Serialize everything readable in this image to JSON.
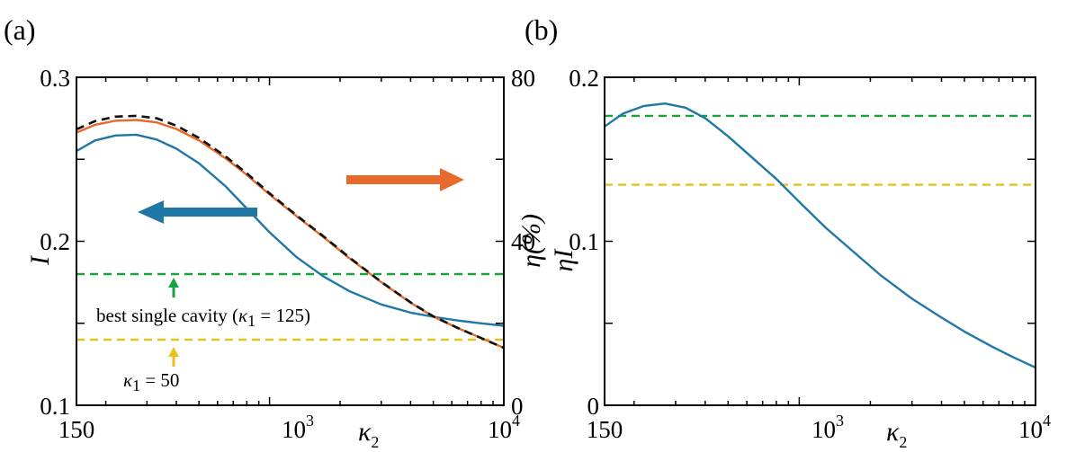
{
  "chart_data": [
    {
      "type": "line",
      "panel_label": "(a)",
      "x_scale": "log",
      "xlim": [
        150,
        10000
      ],
      "xticks": [
        {
          "label": "150"
        },
        {
          "base": "10",
          "exp": "3"
        },
        {
          "base": "10",
          "exp": "4"
        }
      ],
      "xlabel": {
        "symbol": "κ",
        "sub": "2"
      },
      "ylabel_left": "I",
      "ylim_left": [
        0.1,
        0.3
      ],
      "yticks_left": [
        "0.1",
        "0.2",
        "0.3"
      ],
      "ylabel_right": "η(%)",
      "ylim_right": [
        0,
        80
      ],
      "yticks_right": [
        "0",
        "40",
        "80"
      ],
      "series": [
        {
          "name": "I",
          "axis": "left",
          "color": "#1f77a6",
          "style": "solid",
          "x": [
            150,
            180,
            220,
            270,
            330,
            400,
            500,
            650,
            800,
            1000,
            1300,
            1700,
            2200,
            3000,
            4000,
            5000,
            6500,
            8000,
            10000
          ],
          "y": [
            0.255,
            0.2615,
            0.2645,
            0.265,
            0.262,
            0.2565,
            0.2475,
            0.2335,
            0.22,
            0.2055,
            0.1905,
            0.1785,
            0.1695,
            0.1615,
            0.1565,
            0.154,
            0.1515,
            0.15,
            0.1485
          ]
        },
        {
          "name": "η",
          "axis": "right",
          "color": "#e8692a",
          "style": "solid",
          "x": [
            150,
            180,
            220,
            270,
            330,
            400,
            500,
            650,
            800,
            1000,
            1300,
            1700,
            2200,
            3000,
            4000,
            5000,
            6500,
            8000,
            10000
          ],
          "y": [
            66.5,
            68.4,
            69.4,
            69.6,
            69.0,
            67.4,
            64.6,
            60.2,
            56.2,
            51.4,
            46.2,
            41.0,
            35.8,
            30.0,
            25.0,
            21.6,
            18.6,
            16.4,
            14.0
          ]
        },
        {
          "name": "η (dashed)",
          "axis": "right",
          "color": "#111111",
          "style": "dashed",
          "x": [
            150,
            180,
            220,
            270,
            330,
            400,
            500,
            650,
            800,
            1000,
            1300,
            1700,
            2200,
            3000,
            4000,
            5000,
            6500,
            8000,
            10000
          ],
          "y": [
            67.3,
            69.3,
            70.4,
            70.6,
            70.0,
            68.2,
            65.2,
            60.7,
            56.6,
            51.7,
            46.4,
            41.2,
            36.0,
            30.1,
            25.1,
            21.7,
            18.6,
            16.4,
            14.0
          ]
        }
      ],
      "reference_lines": [
        {
          "name": "best single cavity",
          "axis": "left",
          "y": 0.18,
          "color": "#19a33f",
          "style": "dashed"
        },
        {
          "name": "κ1 = 50",
          "axis": "left",
          "y": 0.14,
          "color": "#e8c21a",
          "style": "dashed"
        }
      ],
      "annotations": {
        "green": {
          "prefix": "best single cavity (",
          "symbol": "κ",
          "sub": "1",
          "suffix": " = 125)",
          "color": "#19a33f"
        },
        "yellow": {
          "symbol": "κ",
          "sub": "1",
          "suffix": " = 50",
          "color": "#e8c21a"
        },
        "blue_arrow": {
          "direction": "left",
          "color": "#1f77a6",
          "refers_to": "left axis"
        },
        "orange_arrow": {
          "direction": "right",
          "color": "#e8692a",
          "refers_to": "right axis"
        }
      }
    },
    {
      "type": "line",
      "panel_label": "(b)",
      "x_scale": "log",
      "xlim": [
        150,
        10000
      ],
      "xticks": [
        {
          "label": "150"
        },
        {
          "base": "10",
          "exp": "3"
        },
        {
          "base": "10",
          "exp": "4"
        }
      ],
      "xlabel": {
        "symbol": "κ",
        "sub": "2"
      },
      "ylabel": "ηI",
      "ylim": [
        0,
        0.2
      ],
      "yticks": [
        "0",
        "0.1",
        "0.2"
      ],
      "series": [
        {
          "name": "ηI",
          "color": "#1f77a6",
          "style": "solid",
          "x": [
            150,
            180,
            220,
            270,
            330,
            400,
            500,
            650,
            800,
            1000,
            1300,
            1700,
            2200,
            3000,
            4000,
            5000,
            6500,
            8000,
            10000
          ],
          "y": [
            0.17,
            0.178,
            0.1825,
            0.184,
            0.1815,
            0.175,
            0.164,
            0.1495,
            0.138,
            0.124,
            0.108,
            0.0935,
            0.0795,
            0.065,
            0.0535,
            0.045,
            0.036,
            0.0295,
            0.023
          ]
        }
      ],
      "reference_lines": [
        {
          "name": "best single cavity",
          "y": 0.1765,
          "color": "#19a33f",
          "style": "dashed"
        },
        {
          "name": "κ1 = 50",
          "y": 0.1345,
          "color": "#e8c21a",
          "style": "dashed"
        }
      ]
    }
  ]
}
